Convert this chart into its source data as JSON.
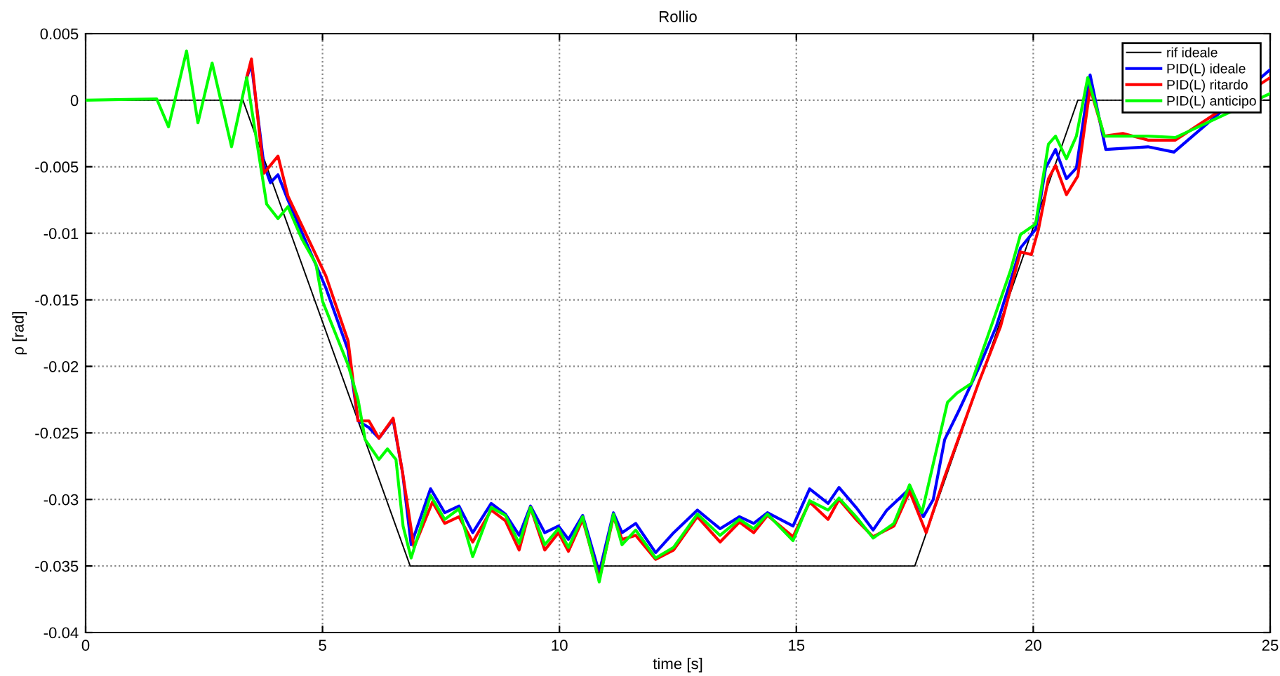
{
  "chart_data": {
    "type": "line",
    "title": "Rollio",
    "xlabel": "time [s]",
    "ylabel": "ρ [rad]",
    "xlim": [
      0,
      25
    ],
    "xticks": [
      0,
      5,
      10,
      15,
      20,
      25
    ],
    "ylim": [
      -0.04,
      0.005
    ],
    "yticks": [
      -0.04,
      -0.035,
      -0.03,
      -0.025,
      -0.02,
      -0.015,
      -0.01,
      -0.005,
      0,
      0.005
    ],
    "grid": true,
    "legend": "top right",
    "line_style": "solid",
    "marker": "none",
    "series": [
      {
        "name": "rif ideale",
        "color": "#000000",
        "x": [
          0,
          3.32,
          6.85,
          17.5,
          20.94,
          25
        ],
        "values": [
          0,
          0,
          -0.035,
          -0.035,
          0,
          0
        ]
      },
      {
        "name": "PID(L) ideale",
        "color": "#0000ff",
        "x": [
          3.4,
          3.5,
          3.76,
          3.9,
          4.06,
          4.27,
          5.07,
          5.54,
          5.75,
          5.98,
          6.19,
          6.49,
          6.69,
          6.87,
          7.28,
          7.58,
          7.88,
          8.17,
          8.56,
          8.86,
          9.15,
          9.39,
          9.69,
          9.98,
          10.19,
          10.49,
          10.84,
          11.14,
          11.32,
          11.61,
          12.03,
          12.41,
          12.91,
          13.39,
          13.8,
          14.1,
          14.39,
          14.93,
          15.28,
          15.67,
          15.9,
          16.26,
          16.62,
          16.91,
          17.39,
          17.68,
          17.89,
          18.13,
          18.42,
          18.84,
          19.22,
          19.52,
          19.73,
          20.05,
          20.26,
          20.47,
          20.7,
          20.91,
          21.2,
          21.53,
          22.42,
          22.97,
          25
        ],
        "values": [
          0.0017,
          0.0027,
          -0.0048,
          -0.0062,
          -0.0056,
          -0.0075,
          -0.0141,
          -0.0188,
          -0.0241,
          -0.0246,
          -0.0254,
          -0.024,
          -0.028,
          -0.0334,
          -0.0292,
          -0.031,
          -0.0305,
          -0.0325,
          -0.0303,
          -0.0311,
          -0.0327,
          -0.0305,
          -0.0325,
          -0.032,
          -0.033,
          -0.0312,
          -0.0355,
          -0.031,
          -0.0325,
          -0.0318,
          -0.034,
          -0.0325,
          -0.0308,
          -0.0322,
          -0.0313,
          -0.0318,
          -0.031,
          -0.032,
          -0.0292,
          -0.0303,
          -0.0291,
          -0.0306,
          -0.0323,
          -0.0308,
          -0.0292,
          -0.0313,
          -0.03,
          -0.0255,
          -0.0234,
          -0.0202,
          -0.017,
          -0.0136,
          -0.0111,
          -0.0097,
          -0.0051,
          -0.0037,
          -0.0059,
          -0.0051,
          0.0019,
          -0.0037,
          -0.0035,
          -0.0039,
          0.0023
        ]
      },
      {
        "name": "PID(L) ritardo",
        "color": "#ff0000",
        "x": [
          3.4,
          3.5,
          3.76,
          4.06,
          4.27,
          5.07,
          5.54,
          5.75,
          5.98,
          6.19,
          6.49,
          6.69,
          6.93,
          7.32,
          7.58,
          7.88,
          8.17,
          8.56,
          8.86,
          9.15,
          9.39,
          9.69,
          9.98,
          10.19,
          10.49,
          10.84,
          11.14,
          11.32,
          11.61,
          12.03,
          12.41,
          12.91,
          13.39,
          13.8,
          14.1,
          14.39,
          14.93,
          15.28,
          15.67,
          15.9,
          16.26,
          16.62,
          17.06,
          17.39,
          17.74,
          18.13,
          18.84,
          19.31,
          19.73,
          19.96,
          20.11,
          20.32,
          20.47,
          20.7,
          20.94,
          21.2,
          21.5,
          21.89,
          22.42,
          23.0,
          25
        ],
        "values": [
          0.0017,
          0.0031,
          -0.0055,
          -0.0042,
          -0.0072,
          -0.0132,
          -0.0181,
          -0.0241,
          -0.0241,
          -0.0254,
          -0.0239,
          -0.028,
          -0.0336,
          -0.0302,
          -0.0318,
          -0.0313,
          -0.0332,
          -0.0308,
          -0.0316,
          -0.0338,
          -0.0306,
          -0.0338,
          -0.0325,
          -0.0339,
          -0.0315,
          -0.036,
          -0.0313,
          -0.033,
          -0.0327,
          -0.0345,
          -0.0338,
          -0.0313,
          -0.0332,
          -0.0317,
          -0.0325,
          -0.0312,
          -0.0328,
          -0.0302,
          -0.0315,
          -0.03,
          -0.0315,
          -0.0328,
          -0.032,
          -0.0294,
          -0.0325,
          -0.0283,
          -0.0213,
          -0.017,
          -0.0114,
          -0.0116,
          -0.0097,
          -0.0059,
          -0.0049,
          -0.0071,
          -0.0057,
          0.0009,
          -0.0027,
          -0.0025,
          -0.003,
          -0.003,
          0.0017
        ]
      },
      {
        "name": "PID(L) anticipo",
        "color": "#00ff00",
        "x": [
          0,
          1.5,
          1.75,
          2.13,
          2.37,
          2.67,
          3.08,
          3.4,
          3.82,
          4.06,
          4.27,
          4.56,
          4.86,
          5.0,
          5.54,
          5.75,
          5.9,
          6.19,
          6.37,
          6.55,
          6.7,
          6.87,
          7.28,
          7.58,
          7.88,
          8.17,
          8.56,
          8.86,
          9.15,
          9.39,
          9.69,
          9.98,
          10.19,
          10.49,
          10.84,
          11.14,
          11.32,
          11.61,
          12.03,
          12.41,
          12.91,
          13.39,
          13.8,
          14.1,
          14.39,
          14.93,
          15.28,
          15.67,
          15.9,
          16.26,
          16.62,
          17.06,
          17.39,
          17.65,
          18.19,
          18.39,
          18.69,
          19.17,
          19.52,
          19.73,
          20.05,
          20.32,
          20.47,
          20.7,
          20.91,
          21.15,
          21.5,
          22.42,
          23.0,
          25
        ],
        "values": [
          0,
          0.0001,
          -0.002,
          0.0037,
          -0.0017,
          0.0028,
          -0.0035,
          0.0017,
          -0.0078,
          -0.0089,
          -0.008,
          -0.0104,
          -0.0123,
          -0.0151,
          -0.0199,
          -0.0225,
          -0.0255,
          -0.027,
          -0.0262,
          -0.027,
          -0.032,
          -0.0344,
          -0.0297,
          -0.0315,
          -0.0307,
          -0.0343,
          -0.0306,
          -0.0312,
          -0.0333,
          -0.0306,
          -0.0334,
          -0.0322,
          -0.0336,
          -0.0313,
          -0.0362,
          -0.0311,
          -0.0334,
          -0.0323,
          -0.0344,
          -0.0336,
          -0.0311,
          -0.0327,
          -0.0315,
          -0.0322,
          -0.0311,
          -0.0331,
          -0.0301,
          -0.0308,
          -0.0299,
          -0.0313,
          -0.0329,
          -0.0318,
          -0.0289,
          -0.031,
          -0.0227,
          -0.022,
          -0.0213,
          -0.0164,
          -0.0128,
          -0.0101,
          -0.0093,
          -0.0033,
          -0.0027,
          -0.0044,
          -0.0027,
          0.0017,
          -0.0027,
          -0.0027,
          -0.0028,
          0.0005
        ]
      }
    ]
  }
}
